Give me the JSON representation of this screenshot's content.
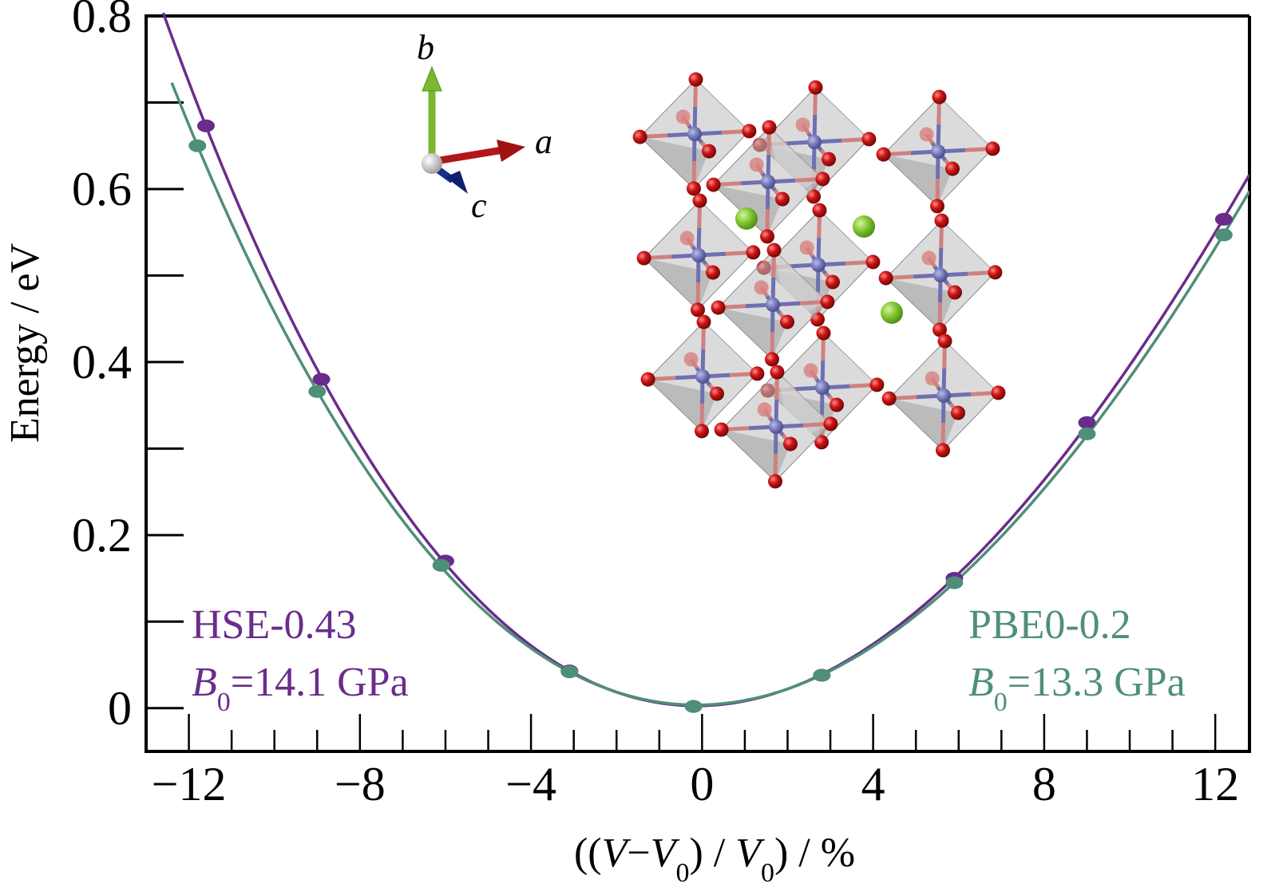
{
  "chart_data": {
    "type": "line",
    "title": "",
    "xlabel": "((V−V0) / V0) / %",
    "xlabel_parts": [
      {
        "t": "((",
        "i": false
      },
      {
        "t": "V",
        "i": true
      },
      {
        "t": "−",
        "i": false
      },
      {
        "t": "V",
        "i": true
      },
      {
        "t": "0",
        "sub": true
      },
      {
        "t": ") / ",
        "i": false
      },
      {
        "t": "V",
        "i": true
      },
      {
        "t": "0",
        "sub": true
      },
      {
        "t": ") / %",
        "i": false
      }
    ],
    "ylabel": "Energy / eV",
    "xlim": [
      -13,
      12.8
    ],
    "ylim": [
      -0.05,
      0.8
    ],
    "grid": false,
    "x_ticks": [
      -12,
      -8,
      -4,
      0,
      4,
      8,
      12
    ],
    "x_tick_labels": [
      "−12",
      "−8",
      "−4",
      "0",
      "4",
      "8",
      "12"
    ],
    "x_minor_step": 1,
    "y_ticks": [
      0,
      0.2,
      0.4,
      0.6,
      0.8
    ],
    "y_tick_labels": [
      "0",
      "0.2",
      "0.4",
      "0.6",
      "0.8"
    ],
    "y_minor_step": 0.1,
    "series": [
      {
        "name": "HSE-0.43",
        "color": "#6a2c8c",
        "annotation": {
          "line1": "HSE-0.43",
          "b0_symbol": "B",
          "b0_sub": "0",
          "b0_value": "=14.1 GPa",
          "position": "bottom-left"
        },
        "bulk_modulus_GPa": 14.1,
        "points": {
          "x": [
            -11.6,
            -8.9,
            -6.0,
            -3.1,
            -0.2,
            2.8,
            5.9,
            9.0,
            12.2
          ],
          "y": [
            0.673,
            0.38,
            0.17,
            0.043,
            0.002,
            0.038,
            0.15,
            0.33,
            0.565
          ]
        },
        "fit_curve_x_range": [
          -12.6,
          12.8
        ]
      },
      {
        "name": "PBE0-0.2",
        "color": "#4f8f78",
        "annotation": {
          "line1": "PBE0-0.2",
          "b0_symbol": "B",
          "b0_sub": "0",
          "b0_value": "=13.3 GPa",
          "position": "bottom-right"
        },
        "bulk_modulus_GPa": 13.3,
        "points": {
          "x": [
            -11.8,
            -9.0,
            -6.1,
            -3.1,
            -0.2,
            2.8,
            5.9,
            9.0,
            12.2
          ],
          "y": [
            0.65,
            0.366,
            0.165,
            0.042,
            0.002,
            0.038,
            0.145,
            0.317,
            0.547
          ]
        },
        "fit_curve_x_range": [
          -12.4,
          12.8
        ]
      }
    ],
    "inset": {
      "description": "crystal structure (corner-sharing octahedra)",
      "axes_labels": {
        "a": "a",
        "b": "b",
        "c": "c"
      },
      "axis_colors": {
        "a": "#b01818",
        "b": "#7ab830",
        "c": "#1a2f8a"
      },
      "atom_colors": {
        "oxygen": "#c01010",
        "center": "#6f70b0",
        "guest": "#7ac02a"
      }
    }
  }
}
